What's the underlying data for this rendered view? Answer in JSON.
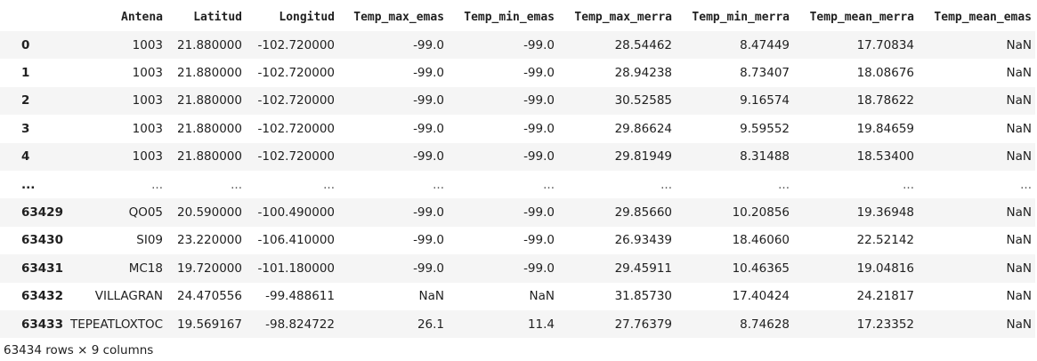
{
  "columns": [
    "",
    "Antena",
    "Latitud",
    "Longitud",
    "Temp_max_emas",
    "Temp_min_emas",
    "Temp_max_merra",
    "Temp_min_merra",
    "Temp_mean_merra",
    "Temp_mean_emas"
  ],
  "rows": [
    {
      "index": "0",
      "cells": [
        "1003",
        "21.880000",
        "-102.720000",
        "-99.0",
        "-99.0",
        "28.54462",
        "8.47449",
        "17.70834",
        "NaN"
      ]
    },
    {
      "index": "1",
      "cells": [
        "1003",
        "21.880000",
        "-102.720000",
        "-99.0",
        "-99.0",
        "28.94238",
        "8.73407",
        "18.08676",
        "NaN"
      ]
    },
    {
      "index": "2",
      "cells": [
        "1003",
        "21.880000",
        "-102.720000",
        "-99.0",
        "-99.0",
        "30.52585",
        "9.16574",
        "18.78622",
        "NaN"
      ]
    },
    {
      "index": "3",
      "cells": [
        "1003",
        "21.880000",
        "-102.720000",
        "-99.0",
        "-99.0",
        "29.86624",
        "9.59552",
        "19.84659",
        "NaN"
      ]
    },
    {
      "index": "4",
      "cells": [
        "1003",
        "21.880000",
        "-102.720000",
        "-99.0",
        "-99.0",
        "29.81949",
        "8.31488",
        "18.53400",
        "NaN"
      ]
    },
    {
      "index": "...",
      "cells": [
        "...",
        "...",
        "...",
        "...",
        "...",
        "...",
        "...",
        "...",
        "..."
      ]
    },
    {
      "index": "63429",
      "cells": [
        "QO05",
        "20.590000",
        "-100.490000",
        "-99.0",
        "-99.0",
        "29.85660",
        "10.20856",
        "19.36948",
        "NaN"
      ]
    },
    {
      "index": "63430",
      "cells": [
        "SI09",
        "23.220000",
        "-106.410000",
        "-99.0",
        "-99.0",
        "26.93439",
        "18.46060",
        "22.52142",
        "NaN"
      ]
    },
    {
      "index": "63431",
      "cells": [
        "MC18",
        "19.720000",
        "-101.180000",
        "-99.0",
        "-99.0",
        "29.45911",
        "10.46365",
        "19.04816",
        "NaN"
      ]
    },
    {
      "index": "63432",
      "cells": [
        "VILLAGRAN",
        "24.470556",
        "-99.488611",
        "NaN",
        "NaN",
        "31.85730",
        "17.40424",
        "24.21817",
        "NaN"
      ]
    },
    {
      "index": "63433",
      "cells": [
        "TEPEATLOXTOC",
        "19.569167",
        "-98.824722",
        "26.1",
        "11.4",
        "27.76379",
        "8.74628",
        "17.23352",
        "NaN"
      ]
    }
  ],
  "footer": "63434 rows × 9 columns"
}
